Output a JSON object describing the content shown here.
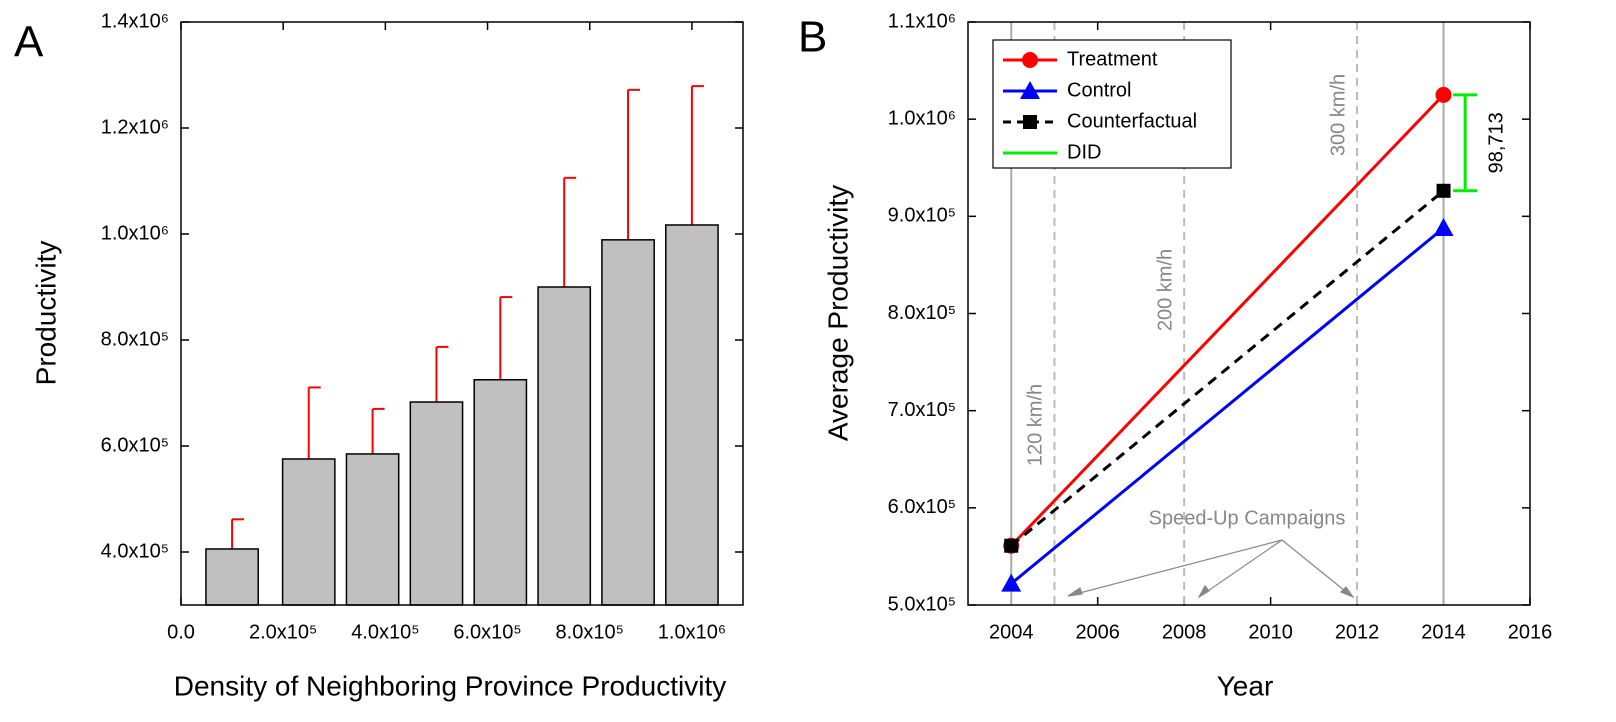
{
  "chart_data": [
    {
      "type": "bar",
      "panel_label": "A",
      "x": [
        100000,
        250000,
        375000,
        500000,
        625000,
        750000,
        875000,
        1000000
      ],
      "values": [
        405700,
        575500,
        585000,
        683000,
        725000,
        900000,
        989000,
        1017000
      ],
      "errors": [
        56000,
        135000,
        85000,
        104000,
        156000,
        206000,
        283000,
        262000
      ],
      "color": "#c0c0c0",
      "error_color": "#ff0000",
      "xlabel": "Density of Neighboring Province Productivity",
      "ylabel": "Productivity",
      "xlim": [
        0,
        1100000
      ],
      "xticks": [
        {
          "value": 0,
          "label": "0.0"
        },
        {
          "value": 200000,
          "label": "2.0x10⁵"
        },
        {
          "value": 400000,
          "label": "4.0x10⁵"
        },
        {
          "value": 600000,
          "label": "6.0x10⁵"
        },
        {
          "value": 800000,
          "label": "8.0x10⁵"
        },
        {
          "value": 1000000,
          "label": "1.0x10⁶"
        }
      ],
      "ylim": [
        300000,
        1400000
      ],
      "yticks": [
        {
          "value": 400000,
          "label": "4.0x10⁵"
        },
        {
          "value": 600000,
          "label": "6.0x10⁵"
        },
        {
          "value": 800000,
          "label": "8.0x10⁵"
        },
        {
          "value": 1000000,
          "label": "1.0x10⁶"
        },
        {
          "value": 1200000,
          "label": "1.2x10⁶"
        },
        {
          "value": 1400000,
          "label": "1.4x10⁶"
        }
      ]
    },
    {
      "type": "line",
      "panel_label": "B",
      "xlabel": "Year",
      "ylabel": "Average Productivity",
      "xlim": [
        2003,
        2016
      ],
      "xticks": [
        2004,
        2006,
        2008,
        2010,
        2012,
        2014,
        2016
      ],
      "ylim": [
        500000,
        1100000
      ],
      "yticks": [
        {
          "value": 500000,
          "label": "5.0x10⁵"
        },
        {
          "value": 600000,
          "label": "6.0x10⁵"
        },
        {
          "value": 700000,
          "label": "7.0x10⁵"
        },
        {
          "value": 800000,
          "label": "8.0x10⁵"
        },
        {
          "value": 900000,
          "label": "9.0x10⁵"
        },
        {
          "value": 1000000,
          "label": "1.0x10⁶"
        },
        {
          "value": 1100000,
          "label": "1.1x10⁶"
        }
      ],
      "series": [
        {
          "name": "Treatment",
          "color": "#ff0000",
          "marker": "circle",
          "dashed": false,
          "x": [
            2004,
            2014
          ],
          "values": [
            561000,
            1025000
          ]
        },
        {
          "name": "Control",
          "color": "#0000ff",
          "marker": "triangle",
          "dashed": false,
          "x": [
            2004,
            2014
          ],
          "values": [
            522000,
            888000
          ]
        },
        {
          "name": "Counterfactual",
          "color": "#000000",
          "marker": "square",
          "dashed": true,
          "x": [
            2004,
            2014
          ],
          "values": [
            561000,
            926287
          ]
        },
        {
          "name": "DID",
          "color": "#00ee00",
          "marker": "cap",
          "dashed": false,
          "x": [
            2014.5,
            2014.5
          ],
          "values": [
            926287,
            1025000
          ]
        }
      ],
      "did_label": "98,713",
      "vlines": [
        {
          "x": 2004,
          "dashed": false
        },
        {
          "x": 2005,
          "dashed": true,
          "label": "120 km/h"
        },
        {
          "x": 2008,
          "dashed": true,
          "label": "200 km/h"
        },
        {
          "x": 2012,
          "dashed": true,
          "label": "300 km/h"
        },
        {
          "x": 2014,
          "dashed": false
        }
      ],
      "annotation": "Speed-Up Campaigns",
      "legend": "upper left"
    }
  ]
}
